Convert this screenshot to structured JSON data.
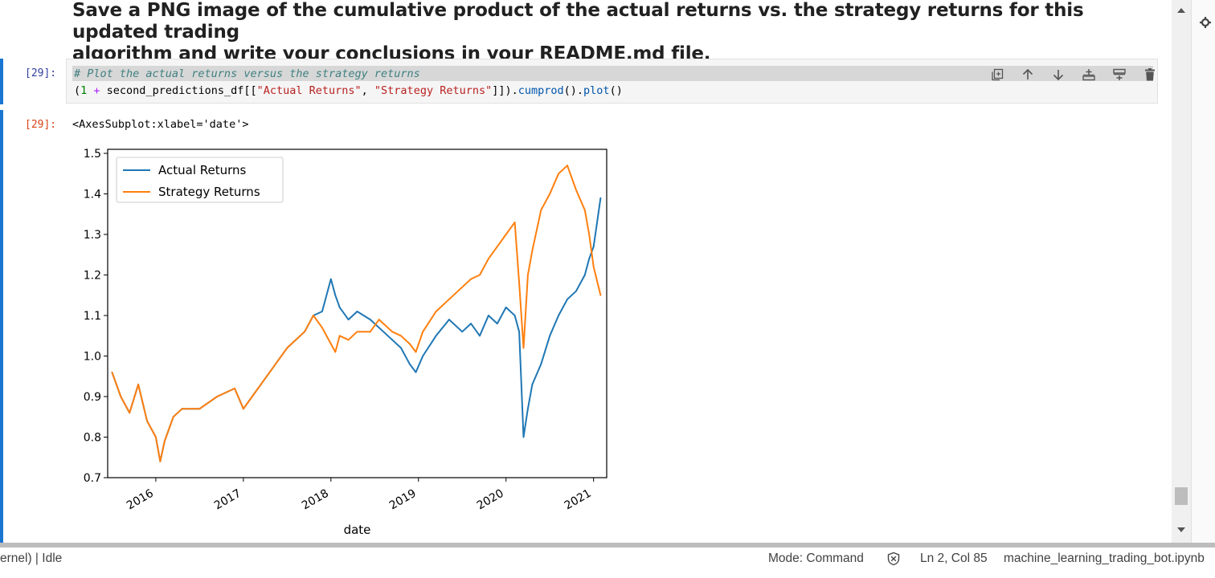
{
  "markdown": {
    "heading_line1": "Save a PNG image of the cumulative product of the actual returns vs. the strategy returns for this updated trading",
    "heading_line2": "algorithm and write your conclusions in your README.md file."
  },
  "code_cell": {
    "prompt": "[29]:",
    "comment": "# Plot the actual returns versus the strategy returns",
    "code_parts": {
      "open": "(",
      "one": "1",
      "plus": " + ",
      "df": "second_predictions_df[[",
      "col1": "\"Actual Returns\"",
      "comma": ", ",
      "col2": "\"Strategy Returns\"",
      "close": "]]).",
      "cumprod": "cumprod",
      "paren_dot": "().",
      "plot": "plot",
      "end": "()"
    },
    "toolbar": [
      "duplicate-icon",
      "move-up-icon",
      "move-down-icon",
      "insert-above-icon",
      "insert-below-icon",
      "delete-icon"
    ]
  },
  "output_cell": {
    "prompt": "[29]:",
    "text": "<AxesSubplot:xlabel='date'>"
  },
  "chart_data": {
    "type": "line",
    "xlabel": "date",
    "ylabel": "",
    "xlim": [
      2015.45,
      2021.15
    ],
    "ylim": [
      0.7,
      1.51
    ],
    "yticks": [
      "0.7",
      "0.8",
      "0.9",
      "1.0",
      "1.1",
      "1.2",
      "1.3",
      "1.4",
      "1.5"
    ],
    "xticks": [
      "2016",
      "2017",
      "2018",
      "2019",
      "2020",
      "2021"
    ],
    "legend": "upper left",
    "grid": false,
    "series": [
      {
        "name": "Actual Returns",
        "color": "#1f77b4",
        "x": [
          2015.5,
          2015.6,
          2015.7,
          2015.8,
          2015.9,
          2016.0,
          2016.05,
          2016.1,
          2016.2,
          2016.3,
          2016.5,
          2016.7,
          2016.9,
          2017.0,
          2017.1,
          2017.3,
          2017.5,
          2017.7,
          2017.8,
          2017.9,
          2018.0,
          2018.05,
          2018.1,
          2018.2,
          2018.3,
          2018.45,
          2018.55,
          2018.7,
          2018.8,
          2018.9,
          2018.97,
          2019.05,
          2019.2,
          2019.35,
          2019.5,
          2019.6,
          2019.7,
          2019.8,
          2019.9,
          2020.0,
          2020.1,
          2020.15,
          2020.2,
          2020.25,
          2020.3,
          2020.4,
          2020.5,
          2020.6,
          2020.7,
          2020.8,
          2020.9,
          2020.95,
          2021.0,
          2021.08
        ],
        "y": [
          0.96,
          0.9,
          0.86,
          0.93,
          0.84,
          0.8,
          0.74,
          0.79,
          0.85,
          0.87,
          0.87,
          0.9,
          0.92,
          0.87,
          0.9,
          0.96,
          1.02,
          1.06,
          1.1,
          1.11,
          1.19,
          1.15,
          1.12,
          1.09,
          1.11,
          1.09,
          1.07,
          1.04,
          1.02,
          0.98,
          0.96,
          1.0,
          1.05,
          1.09,
          1.06,
          1.08,
          1.05,
          1.1,
          1.08,
          1.12,
          1.1,
          1.06,
          0.8,
          0.87,
          0.93,
          0.98,
          1.05,
          1.1,
          1.14,
          1.16,
          1.2,
          1.24,
          1.27,
          1.39
        ]
      },
      {
        "name": "Strategy Returns",
        "color": "#ff7f0e",
        "x": [
          2015.5,
          2015.6,
          2015.7,
          2015.8,
          2015.9,
          2016.0,
          2016.05,
          2016.1,
          2016.2,
          2016.3,
          2016.5,
          2016.7,
          2016.9,
          2017.0,
          2017.1,
          2017.3,
          2017.5,
          2017.7,
          2017.8,
          2017.9,
          2018.0,
          2018.05,
          2018.1,
          2018.2,
          2018.3,
          2018.45,
          2018.55,
          2018.7,
          2018.8,
          2018.9,
          2018.97,
          2019.05,
          2019.2,
          2019.35,
          2019.5,
          2019.6,
          2019.7,
          2019.8,
          2019.9,
          2020.0,
          2020.1,
          2020.15,
          2020.2,
          2020.25,
          2020.3,
          2020.4,
          2020.5,
          2020.6,
          2020.7,
          2020.8,
          2020.9,
          2020.95,
          2021.0,
          2021.08
        ],
        "y": [
          0.96,
          0.9,
          0.86,
          0.93,
          0.84,
          0.8,
          0.74,
          0.79,
          0.85,
          0.87,
          0.87,
          0.9,
          0.92,
          0.87,
          0.9,
          0.96,
          1.02,
          1.06,
          1.1,
          1.07,
          1.03,
          1.01,
          1.05,
          1.04,
          1.06,
          1.06,
          1.09,
          1.06,
          1.05,
          1.03,
          1.01,
          1.06,
          1.11,
          1.14,
          1.17,
          1.19,
          1.2,
          1.24,
          1.27,
          1.3,
          1.33,
          1.18,
          1.02,
          1.2,
          1.26,
          1.36,
          1.4,
          1.45,
          1.47,
          1.41,
          1.36,
          1.3,
          1.22,
          1.15
        ]
      }
    ]
  },
  "statusbar": {
    "kernel": "ernel) | Idle",
    "mode": "Mode: Command",
    "position": "Ln 2, Col 85",
    "filename": "machine_learning_trading_bot.ipynb"
  }
}
